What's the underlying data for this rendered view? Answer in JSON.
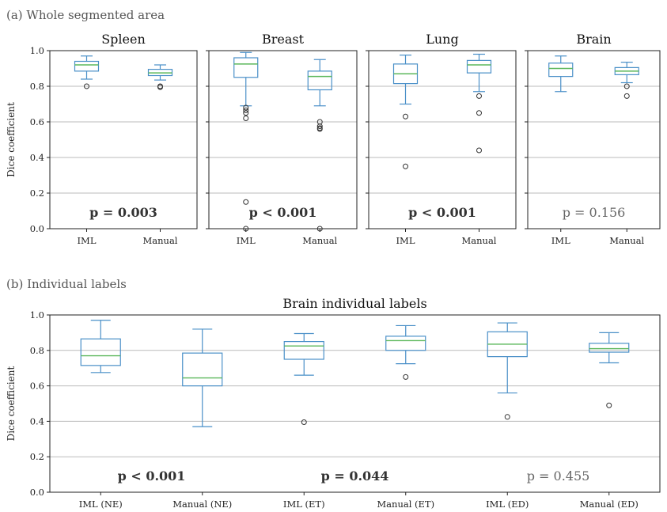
{
  "figure": {
    "section_a_label": "(a) Whole segmented area",
    "section_b_label": "(b) Individual labels"
  },
  "colors": {
    "box": "#4a90c8",
    "median": "#5cb85c",
    "grid": "#bbbbbb",
    "axis": "#222222"
  },
  "chart_data": [
    {
      "type": "box",
      "title": "Spleen",
      "ylabel": "Dice coefficient",
      "ylim": [
        0,
        1
      ],
      "yticks": [
        0.0,
        0.2,
        0.4,
        0.6,
        0.8,
        1.0
      ],
      "ytick_labels": [
        "0.0",
        "0.2",
        "0.4",
        "0.6",
        "0.8",
        "1.0"
      ],
      "grid": "horizontal",
      "categories": [
        "IML",
        "Manual"
      ],
      "boxes": [
        {
          "whislo": 0.84,
          "q1": 0.885,
          "med": 0.92,
          "q3": 0.94,
          "whishi": 0.97,
          "fliers": [
            0.8
          ]
        },
        {
          "whislo": 0.835,
          "q1": 0.86,
          "med": 0.875,
          "q3": 0.895,
          "whishi": 0.92,
          "fliers": [
            0.8,
            0.795
          ]
        }
      ],
      "annotation": {
        "text": "p = 0.003",
        "weight": "bold"
      }
    },
    {
      "type": "box",
      "title": "Breast",
      "ylim": [
        0,
        1
      ],
      "grid": "horizontal",
      "categories": [
        "IML",
        "Manual"
      ],
      "boxes": [
        {
          "whislo": 0.69,
          "q1": 0.85,
          "med": 0.925,
          "q3": 0.96,
          "whishi": 0.99,
          "fliers": [
            0.68,
            0.665,
            0.65,
            0.62,
            0.15,
            0.0
          ]
        },
        {
          "whislo": 0.69,
          "q1": 0.78,
          "med": 0.855,
          "q3": 0.885,
          "whishi": 0.95,
          "fliers": [
            0.6,
            0.575,
            0.565,
            0.56,
            0.0
          ]
        }
      ],
      "annotation": {
        "text": "p < 0.001",
        "weight": "bold"
      }
    },
    {
      "type": "box",
      "title": "Lung",
      "ylim": [
        0,
        1
      ],
      "grid": "horizontal",
      "categories": [
        "IML",
        "Manual"
      ],
      "boxes": [
        {
          "whislo": 0.7,
          "q1": 0.815,
          "med": 0.87,
          "q3": 0.925,
          "whishi": 0.975,
          "fliers": [
            0.63,
            0.35
          ]
        },
        {
          "whislo": 0.77,
          "q1": 0.875,
          "med": 0.92,
          "q3": 0.945,
          "whishi": 0.98,
          "fliers": [
            0.745,
            0.65,
            0.44
          ]
        }
      ],
      "annotation": {
        "text": "p < 0.001",
        "weight": "bold"
      }
    },
    {
      "type": "box",
      "title": "Brain",
      "ylim": [
        0,
        1
      ],
      "grid": "horizontal",
      "categories": [
        "IML",
        "Manual"
      ],
      "boxes": [
        {
          "whislo": 0.77,
          "q1": 0.855,
          "med": 0.9,
          "q3": 0.93,
          "whishi": 0.97,
          "fliers": []
        },
        {
          "whislo": 0.82,
          "q1": 0.865,
          "med": 0.885,
          "q3": 0.905,
          "whishi": 0.935,
          "fliers": [
            0.8,
            0.745
          ]
        }
      ],
      "annotation": {
        "text": "p = 0.156",
        "weight": "normal"
      }
    },
    {
      "type": "box",
      "title": "Brain individual labels",
      "ylabel": "Dice coefficient",
      "ylim": [
        0,
        1
      ],
      "yticks": [
        0.0,
        0.2,
        0.4,
        0.6,
        0.8,
        1.0
      ],
      "ytick_labels": [
        "0.0",
        "0.2",
        "0.4",
        "0.6",
        "0.8",
        "1.0"
      ],
      "grid": "horizontal",
      "categories": [
        "IML (NE)",
        "Manual (NE)",
        "IML (ET)",
        "Manual (ET)",
        "IML (ED)",
        "Manual (ED)"
      ],
      "boxes": [
        {
          "whislo": 0.675,
          "q1": 0.715,
          "med": 0.77,
          "q3": 0.865,
          "whishi": 0.97,
          "fliers": []
        },
        {
          "whislo": 0.37,
          "q1": 0.6,
          "med": 0.645,
          "q3": 0.785,
          "whishi": 0.92,
          "fliers": []
        },
        {
          "whislo": 0.66,
          "q1": 0.75,
          "med": 0.825,
          "q3": 0.85,
          "whishi": 0.895,
          "fliers": [
            0.395
          ]
        },
        {
          "whislo": 0.725,
          "q1": 0.8,
          "med": 0.855,
          "q3": 0.88,
          "whishi": 0.94,
          "fliers": [
            0.65
          ]
        },
        {
          "whislo": 0.56,
          "q1": 0.765,
          "med": 0.835,
          "q3": 0.905,
          "whishi": 0.955,
          "fliers": [
            0.425
          ]
        },
        {
          "whislo": 0.73,
          "q1": 0.79,
          "med": 0.81,
          "q3": 0.84,
          "whishi": 0.9,
          "fliers": [
            0.49
          ]
        }
      ],
      "annotations": [
        {
          "text": "p < 0.001",
          "weight": "bold",
          "position": "under NE pair"
        },
        {
          "text": "p = 0.044",
          "weight": "bold",
          "position": "under ET pair"
        },
        {
          "text": "p = 0.455",
          "weight": "normal",
          "position": "under ED pair"
        }
      ]
    }
  ]
}
